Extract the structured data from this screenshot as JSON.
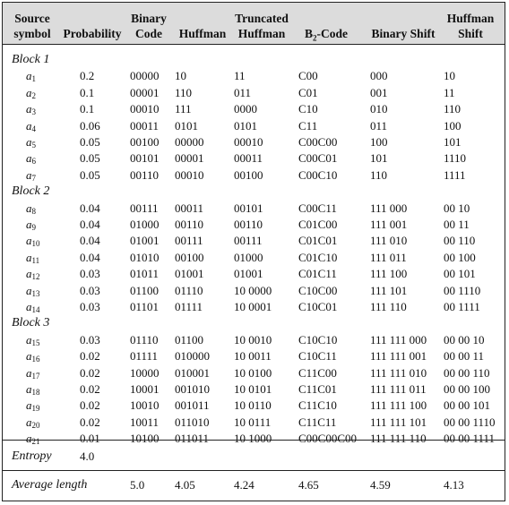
{
  "headers": {
    "source_symbol": [
      "Source",
      "symbol"
    ],
    "probability": "Probability",
    "binary_code": [
      "Binary",
      "Code"
    ],
    "huffman": "Huffman",
    "truncated_huffman": [
      "Truncated",
      "Huffman"
    ],
    "b2_code": {
      "base": "B",
      "sub": "2",
      "rest": "-Code"
    },
    "binary_shift": "Binary Shift",
    "huffman_shift": [
      "Huffman",
      "Shift"
    ]
  },
  "blocks": [
    {
      "label": "Block 1",
      "rows": [
        {
          "sym": "a",
          "idx": "1",
          "prob": "0.2",
          "binary": "00000",
          "huffman": "10",
          "truncated": "11",
          "b2": "C00",
          "bshift": "000",
          "hshift": "10"
        },
        {
          "sym": "a",
          "idx": "2",
          "prob": "0.1",
          "binary": "00001",
          "huffman": "110",
          "truncated": "011",
          "b2": "C01",
          "bshift": "001",
          "hshift": "11"
        },
        {
          "sym": "a",
          "idx": "3",
          "prob": "0.1",
          "binary": "00010",
          "huffman": "111",
          "truncated": "0000",
          "b2": "C10",
          "bshift": "010",
          "hshift": "110"
        },
        {
          "sym": "a",
          "idx": "4",
          "prob": "0.06",
          "binary": "00011",
          "huffman": "0101",
          "truncated": "0101",
          "b2": "C11",
          "bshift": "011",
          "hshift": "100"
        },
        {
          "sym": "a",
          "idx": "5",
          "prob": "0.05",
          "binary": "00100",
          "huffman": "00000",
          "truncated": "00010",
          "b2": "C00C00",
          "bshift": "100",
          "hshift": "101"
        },
        {
          "sym": "a",
          "idx": "6",
          "prob": "0.05",
          "binary": "00101",
          "huffman": "00001",
          "truncated": "00011",
          "b2": "C00C01",
          "bshift": "101",
          "hshift": "1110"
        },
        {
          "sym": "a",
          "idx": "7",
          "prob": "0.05",
          "binary": "00110",
          "huffman": "00010",
          "truncated": "00100",
          "b2": "C00C10",
          "bshift": "110",
          "hshift": "1111"
        }
      ]
    },
    {
      "label": "Block 2",
      "rows": [
        {
          "sym": "a",
          "idx": "8",
          "prob": "0.04",
          "binary": "00111",
          "huffman": "00011",
          "truncated": "00101",
          "b2": "C00C11",
          "bshift": "111 000",
          "hshift": "00 10"
        },
        {
          "sym": "a",
          "idx": "9",
          "prob": "0.04",
          "binary": "01000",
          "huffman": "00110",
          "truncated": "00110",
          "b2": "C01C00",
          "bshift": "111 001",
          "hshift": "00 11"
        },
        {
          "sym": "a",
          "idx": "10",
          "prob": "0.04",
          "binary": "01001",
          "huffman": "00111",
          "truncated": "00111",
          "b2": "C01C01",
          "bshift": "111 010",
          "hshift": "00 110"
        },
        {
          "sym": "a",
          "idx": "11",
          "prob": "0.04",
          "binary": "01010",
          "huffman": "00100",
          "truncated": "01000",
          "b2": "C01C10",
          "bshift": "111 011",
          "hshift": "00 100"
        },
        {
          "sym": "a",
          "idx": "12",
          "prob": "0.03",
          "binary": "01011",
          "huffman": "01001",
          "truncated": "01001",
          "b2": "C01C11",
          "bshift": "111 100",
          "hshift": "00 101"
        },
        {
          "sym": "a",
          "idx": "13",
          "prob": "0.03",
          "binary": "01100",
          "huffman": "01110",
          "truncated": "10 0000",
          "b2": "C10C00",
          "bshift": "111 101",
          "hshift": "00 1110"
        },
        {
          "sym": "a",
          "idx": "14",
          "prob": "0.03",
          "binary": "01101",
          "huffman": "01111",
          "truncated": "10 0001",
          "b2": "C10C01",
          "bshift": "111 110",
          "hshift": "00 1111"
        }
      ]
    },
    {
      "label": "Block 3",
      "rows": [
        {
          "sym": "a",
          "idx": "15",
          "prob": "0.03",
          "binary": "01110",
          "huffman": "01100",
          "truncated": "10 0010",
          "b2": "C10C10",
          "bshift": "111 111 000",
          "hshift": "00 00 10"
        },
        {
          "sym": "a",
          "idx": "16",
          "prob": "0.02",
          "binary": "01111",
          "huffman": "010000",
          "truncated": "10 0011",
          "b2": "C10C11",
          "bshift": "111 111 001",
          "hshift": "00 00 11"
        },
        {
          "sym": "a",
          "idx": "17",
          "prob": "0.02",
          "binary": "10000",
          "huffman": "010001",
          "truncated": "10 0100",
          "b2": "C11C00",
          "bshift": "111 111 010",
          "hshift": "00 00 110"
        },
        {
          "sym": "a",
          "idx": "18",
          "prob": "0.02",
          "binary": "10001",
          "huffman": "001010",
          "truncated": "10 0101",
          "b2": "C11C01",
          "bshift": "111 111 011",
          "hshift": "00 00 100"
        },
        {
          "sym": "a",
          "idx": "19",
          "prob": "0.02",
          "binary": "10010",
          "huffman": "001011",
          "truncated": "10 0110",
          "b2": "C11C10",
          "bshift": "111 111 100",
          "hshift": "00 00 101"
        },
        {
          "sym": "a",
          "idx": "20",
          "prob": "0.02",
          "binary": "10011",
          "huffman": "011010",
          "truncated": "10 0111",
          "b2": "C11C11",
          "bshift": "111 111 101",
          "hshift": "00 00 1110"
        },
        {
          "sym": "a",
          "idx": "21",
          "prob": "0.01",
          "binary": "10100",
          "huffman": "011011",
          "truncated": "10 1000",
          "b2": "C00C00C00",
          "bshift": "111 111 110",
          "hshift": "00 00 1111"
        }
      ]
    }
  ],
  "entropy": {
    "label": "Entropy",
    "value": "4.0"
  },
  "average_length": {
    "label": "Average length",
    "probability": "5.0",
    "huffman": "4.05",
    "truncated": "4.24",
    "b2": "4.65",
    "bshift": "4.59",
    "hshift": "4.13"
  }
}
